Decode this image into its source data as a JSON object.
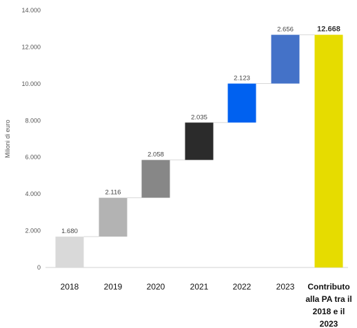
{
  "chart_data": {
    "type": "waterfall",
    "ylabel": "Milioni di euro",
    "ylim": [
      0,
      14000
    ],
    "yticks": [
      "0",
      "2.000",
      "4.000",
      "6.000",
      "8.000",
      "10.000",
      "12.000",
      "14.000"
    ],
    "grid": false,
    "categories": [
      {
        "label": [
          "2018"
        ],
        "value": 1680,
        "value_label": "1.680",
        "color": "#d9d9d9",
        "total": false
      },
      {
        "label": [
          "2019"
        ],
        "value": 2116,
        "value_label": "2.116",
        "color": "#b3b3b3",
        "total": false
      },
      {
        "label": [
          "2020"
        ],
        "value": 2058,
        "value_label": "2.058",
        "color": "#878787",
        "total": false
      },
      {
        "label": [
          "2021"
        ],
        "value": 2035,
        "value_label": "2.035",
        "color": "#2b2b2b",
        "total": false
      },
      {
        "label": [
          "2022"
        ],
        "value": 2123,
        "value_label": "2.123",
        "color": "#0061f0",
        "total": false
      },
      {
        "label": [
          "2023"
        ],
        "value": 2656,
        "value_label": "2.656",
        "color": "#4472c8",
        "total": false
      },
      {
        "label": [
          "Contributo",
          "alla PA tra il",
          "2018 e il",
          "2023"
        ],
        "value": 12668,
        "value_label": "12.668",
        "color": "#e6dc00",
        "total": true
      }
    ]
  }
}
